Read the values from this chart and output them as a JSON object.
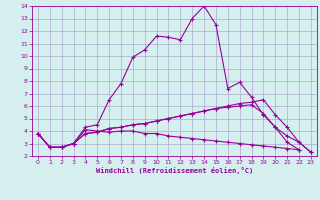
{
  "xlabel": "Windchill (Refroidissement éolien,°C)",
  "x": [
    0,
    1,
    2,
    3,
    4,
    5,
    6,
    7,
    8,
    9,
    10,
    11,
    12,
    13,
    14,
    15,
    16,
    17,
    18,
    19,
    20,
    21,
    22,
    23
  ],
  "line1": [
    3.8,
    2.7,
    2.7,
    3.0,
    4.3,
    4.5,
    6.5,
    7.8,
    9.9,
    10.5,
    11.6,
    11.5,
    11.3,
    13.0,
    14.0,
    12.5,
    7.4,
    7.9,
    6.7,
    5.3,
    4.3,
    3.1,
    2.5,
    null
  ],
  "line2": [
    3.8,
    2.7,
    2.7,
    3.0,
    4.1,
    4.0,
    3.9,
    4.0,
    4.0,
    3.8,
    3.8,
    3.6,
    3.5,
    3.4,
    3.3,
    3.2,
    3.1,
    3.0,
    2.9,
    2.8,
    2.7,
    2.6,
    2.5,
    null
  ],
  "line3": [
    3.8,
    2.7,
    2.7,
    3.0,
    3.8,
    3.9,
    4.2,
    4.3,
    4.5,
    4.6,
    4.8,
    5.0,
    5.2,
    5.4,
    5.6,
    5.8,
    6.0,
    6.2,
    6.3,
    6.5,
    5.3,
    4.3,
    3.1,
    2.3
  ],
  "line4": [
    3.8,
    2.7,
    2.7,
    3.0,
    3.8,
    3.9,
    4.2,
    4.3,
    4.5,
    4.6,
    4.8,
    5.0,
    5.2,
    5.4,
    5.6,
    5.8,
    5.9,
    6.0,
    6.1,
    5.4,
    4.3,
    3.6,
    3.1,
    2.3
  ],
  "color": "#990099",
  "bg_color": "#d5efef",
  "grid_color": "#aaaacc",
  "ylim": [
    2,
    14
  ],
  "xlim": [
    -0.5,
    23.5
  ],
  "yticks": [
    2,
    3,
    4,
    5,
    6,
    7,
    8,
    9,
    10,
    11,
    12,
    13,
    14
  ],
  "xticks": [
    0,
    1,
    2,
    3,
    4,
    5,
    6,
    7,
    8,
    9,
    10,
    11,
    12,
    13,
    14,
    15,
    16,
    17,
    18,
    19,
    20,
    21,
    22,
    23
  ]
}
